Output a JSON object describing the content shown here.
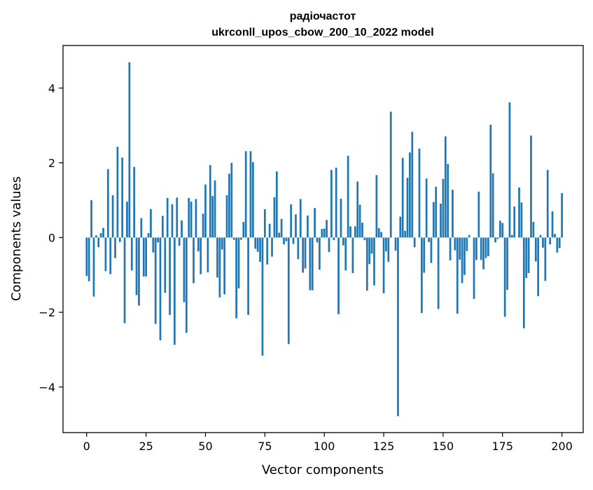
{
  "chart_data": {
    "type": "bar",
    "title": "радіочастот",
    "subtitle": "ukrconll_upos_cbow_200_10_2022 model",
    "xlabel": "Vector components",
    "ylabel": "Components values",
    "xlim": [
      -9.95,
      208.95
    ],
    "ylim": [
      -5.22,
      5.14
    ],
    "xticks": [
      0,
      25,
      50,
      75,
      100,
      125,
      150,
      175,
      200
    ],
    "xtick_labels": [
      "0",
      "25",
      "50",
      "75",
      "100",
      "125",
      "150",
      "175",
      "200"
    ],
    "yticks": [
      -4,
      -2,
      0,
      2,
      4
    ],
    "ytick_labels": [
      "−4",
      "−2",
      "0",
      "2",
      "4"
    ],
    "grid": false,
    "bar_color": "#1f77b4",
    "values": [
      -1.03,
      -1.17,
      1.0,
      -1.58,
      0.06,
      -0.26,
      0.12,
      0.26,
      -0.9,
      1.83,
      -0.98,
      1.13,
      -0.55,
      2.43,
      -0.12,
      2.14,
      -2.29,
      0.96,
      4.69,
      -0.88,
      1.89,
      -1.54,
      -1.82,
      0.52,
      -1.04,
      -1.04,
      0.12,
      0.76,
      -0.4,
      -2.31,
      -0.13,
      -2.75,
      0.58,
      -1.48,
      1.06,
      -2.07,
      0.89,
      -2.87,
      1.07,
      -0.22,
      0.46,
      -1.73,
      -2.55,
      1.06,
      0.96,
      -1.22,
      1.03,
      -0.37,
      -0.98,
      0.64,
      1.42,
      -0.93,
      1.94,
      1.11,
      1.53,
      -1.07,
      -1.6,
      -0.32,
      -1.52,
      1.13,
      1.71,
      2.0,
      -0.06,
      -2.16,
      -1.36,
      -0.06,
      0.42,
      2.31,
      -2.07,
      2.31,
      2.02,
      -0.3,
      -0.38,
      -0.65,
      -3.16,
      0.76,
      -0.72,
      0.37,
      -0.51,
      1.08,
      1.77,
      0.13,
      0.5,
      -0.18,
      -0.1,
      -2.85,
      0.89,
      -0.17,
      0.62,
      -0.58,
      1.03,
      -0.94,
      -0.83,
      0.59,
      -1.41,
      -1.41,
      0.79,
      -0.13,
      -0.86,
      0.23,
      0.24,
      0.47,
      -0.39,
      1.81,
      -0.07,
      1.87,
      -2.05,
      1.04,
      -0.21,
      -0.88,
      2.19,
      0.3,
      -0.95,
      0.3,
      1.5,
      0.88,
      0.4,
      -0.07,
      -1.42,
      -0.71,
      -0.43,
      -1.28,
      1.67,
      0.25,
      0.15,
      -1.49,
      -0.37,
      -0.65,
      3.37,
      0.0,
      -0.35,
      -4.78,
      0.56,
      2.13,
      0.18,
      1.6,
      2.28,
      2.83,
      -0.26,
      0.0,
      2.38,
      -2.02,
      -0.94,
      1.58,
      -0.12,
      -0.68,
      0.95,
      1.36,
      -1.91,
      0.91,
      1.57,
      2.71,
      1.97,
      -0.61,
      1.28,
      -0.34,
      -2.04,
      -0.59,
      -1.22,
      -1.0,
      -0.36,
      0.07,
      0.0,
      -1.64,
      -0.6,
      1.23,
      -0.6,
      -0.85,
      -0.55,
      -0.5,
      3.02,
      1.72,
      -0.13,
      -0.04,
      0.45,
      0.39,
      -2.12,
      -1.4,
      3.62,
      0.07,
      0.83,
      0.0,
      1.34,
      0.94,
      -2.43,
      -1.08,
      -0.95,
      2.73,
      0.42,
      -0.64,
      -1.57,
      0.07,
      -0.27,
      -1.16,
      1.81,
      -0.18,
      0.7,
      0.1,
      -0.4,
      -0.28,
      1.19
    ]
  }
}
